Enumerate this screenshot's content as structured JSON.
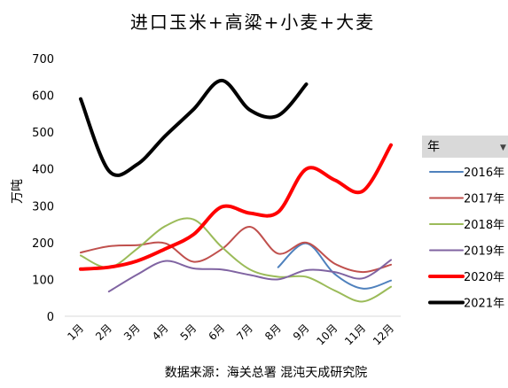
{
  "chart_data": {
    "type": "line",
    "title": "进口玉米+高粱+小麦+大麦",
    "ylabel": "万吨",
    "xlabel": "",
    "source": "数据来源：海关总署 混沌天成研究院",
    "categories": [
      "1月",
      "2月",
      "3月",
      "4月",
      "5月",
      "6月",
      "7月",
      "8月",
      "9月",
      "10月",
      "11月",
      "12月"
    ],
    "yticks": [
      "0",
      "100",
      "200",
      "300",
      "400",
      "500",
      "600",
      "700"
    ],
    "ylim": [
      0,
      700
    ],
    "legend": {
      "title": "年",
      "position": "right"
    },
    "series": [
      {
        "name": "2016年",
        "color": "#4f81bd",
        "width": 2,
        "values": [
          null,
          null,
          null,
          null,
          null,
          null,
          null,
          133,
          198,
          115,
          75,
          97
        ]
      },
      {
        "name": "2017年",
        "color": "#c0504d",
        "width": 2,
        "values": [
          173,
          190,
          193,
          198,
          148,
          182,
          243,
          170,
          200,
          143,
          120,
          140
        ]
      },
      {
        "name": "2018年",
        "color": "#9bbb59",
        "width": 2,
        "values": [
          165,
          132,
          183,
          245,
          263,
          188,
          127,
          107,
          107,
          70,
          40,
          80
        ]
      },
      {
        "name": "2019年",
        "color": "#8064a2",
        "width": 2,
        "values": [
          null,
          67,
          113,
          150,
          130,
          127,
          112,
          100,
          125,
          120,
          103,
          153
        ]
      },
      {
        "name": "2020年",
        "color": "#ff0000",
        "width": 4,
        "values": [
          128,
          133,
          150,
          183,
          222,
          297,
          280,
          283,
          400,
          370,
          340,
          465
        ]
      },
      {
        "name": "2021年",
        "color": "#000000",
        "width": 4,
        "values": [
          590,
          395,
          412,
          490,
          562,
          640,
          560,
          545,
          630,
          null,
          null,
          null
        ]
      }
    ]
  }
}
